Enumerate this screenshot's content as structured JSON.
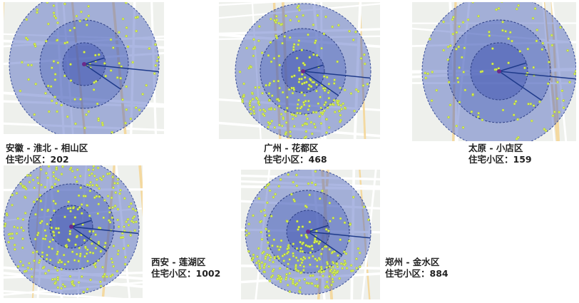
{
  "panels": [
    {
      "title": "安徽 - 淮北 - 相山区",
      "count": "住宅小区：202"
    },
    {
      "title": "广州 - 花都区",
      "count": "住宅小区：468"
    },
    {
      "title": "太原 - 小店区",
      "count": "住宅小区：159"
    },
    {
      "title": "西安 - 莲湖区",
      "count": "住宅小区：1002"
    },
    {
      "title": "郑州 - 金水区",
      "count": "住宅小区：884"
    }
  ]
}
